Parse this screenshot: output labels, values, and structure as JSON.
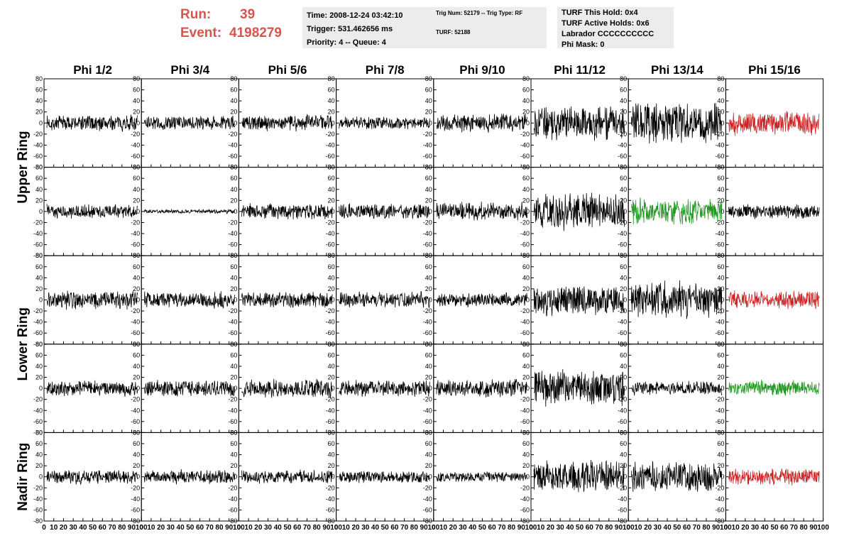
{
  "header": {
    "run_label": "Run:",
    "run_value": "39",
    "event_label": "Event:",
    "event_value": "4198279",
    "label_color": "#d9534f"
  },
  "info_panel_1": {
    "time": "Time: 2008-12-24 03:42:10",
    "trigger": "Trigger: 531.462656 ms",
    "priority": "Priority: 4 -- Queue: 4"
  },
  "info_panel_2": {
    "trig": "Trig Num: 52179 -- Trig Type: RF",
    "turf": "TURF: 52188"
  },
  "info_panel_3": {
    "hold": "TURF This Hold: 0x4",
    "active": "TURF Active Holds: 0x6",
    "labrador": "Labrador CCCCCCCCCC",
    "phimask": "Phi Mask: 0"
  },
  "chart_data": {
    "type": "line",
    "columns": [
      "Phi 1/2",
      "Phi 3/4",
      "Phi 5/6",
      "Phi 7/8",
      "Phi 9/10",
      "Phi 11/12",
      "Phi 13/14",
      "Phi 15/16"
    ],
    "row_groups": [
      {
        "label": "Upper Ring",
        "rows": [
          0,
          1
        ]
      },
      {
        "label": "Lower Ring",
        "rows": [
          2,
          3
        ]
      },
      {
        "label": "Nadir Ring",
        "rows": [
          4
        ]
      }
    ],
    "xlim": [
      0,
      100
    ],
    "x_ticks": [
      0,
      10,
      20,
      30,
      40,
      50,
      60,
      70,
      80,
      90,
      100
    ],
    "ylim": [
      -80,
      80
    ],
    "y_ticks": [
      80,
      60,
      40,
      20,
      0,
      -20,
      -40,
      -60,
      -80
    ],
    "grid": false,
    "colors": {
      "default": "#000000",
      "red": "#cc2222",
      "green": "#229922"
    },
    "panels": [
      {
        "row": 0,
        "amps": [
          16,
          14,
          16,
          12,
          18,
          34,
          42,
          24
        ],
        "colors": [
          "default",
          "default",
          "default",
          "default",
          "default",
          "default",
          "default",
          "red"
        ]
      },
      {
        "row": 1,
        "amps": [
          14,
          4,
          16,
          16,
          18,
          36,
          26,
          14
        ],
        "colors": [
          "default",
          "default",
          "default",
          "default",
          "default",
          "default",
          "green",
          "default"
        ]
      },
      {
        "row": 2,
        "amps": [
          18,
          16,
          16,
          16,
          14,
          30,
          36,
          18
        ],
        "colors": [
          "default",
          "default",
          "default",
          "default",
          "default",
          "default",
          "default",
          "red"
        ]
      },
      {
        "row": 3,
        "amps": [
          16,
          18,
          18,
          16,
          18,
          36,
          14,
          16
        ],
        "colors": [
          "default",
          "default",
          "default",
          "default",
          "default",
          "default",
          "default",
          "green"
        ]
      },
      {
        "row": 4,
        "amps": [
          14,
          14,
          14,
          12,
          10,
          32,
          30,
          16
        ],
        "colors": [
          "default",
          "default",
          "default",
          "default",
          "default",
          "default",
          "default",
          "red"
        ]
      }
    ]
  }
}
